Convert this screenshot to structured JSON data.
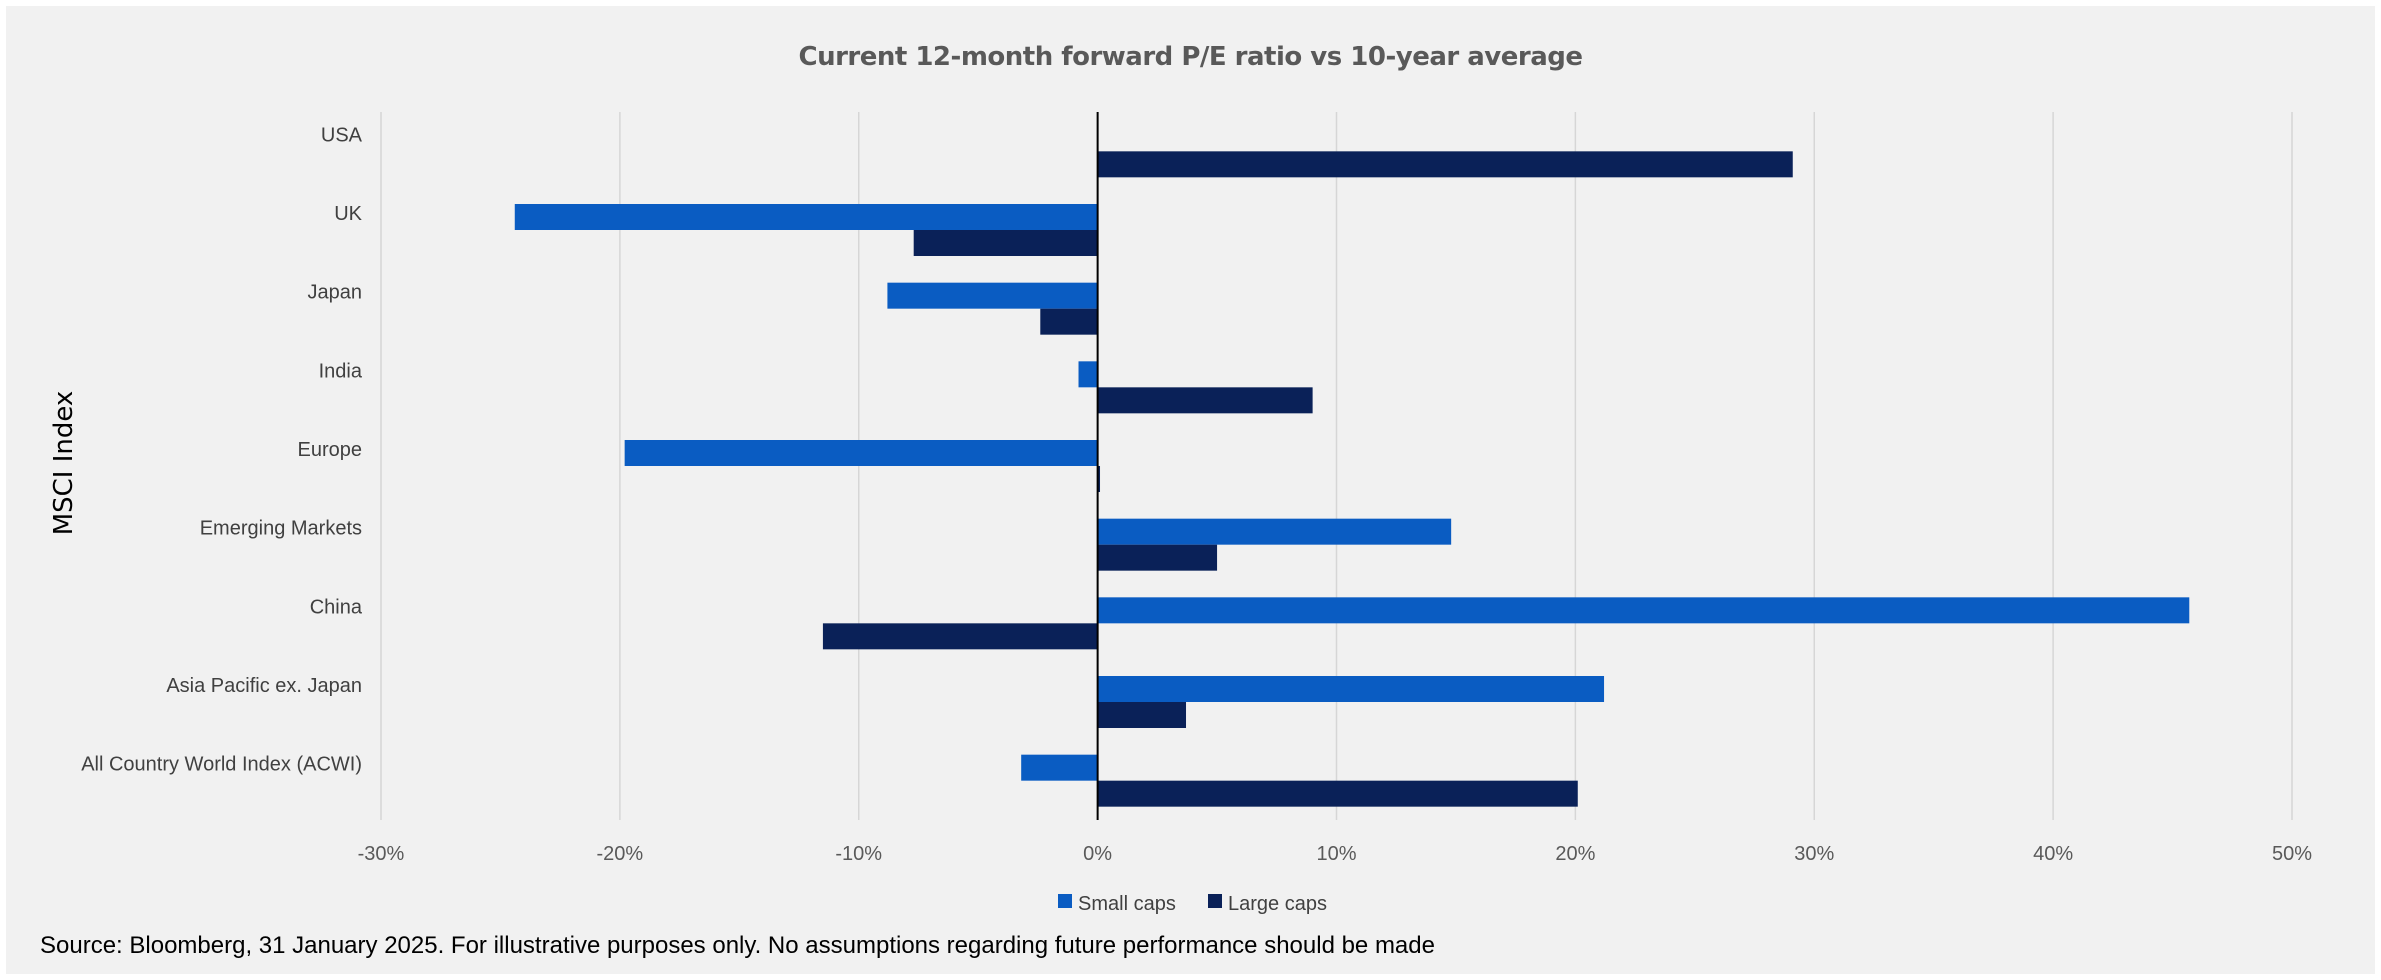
{
  "chart_data": {
    "type": "bar",
    "orientation": "horizontal",
    "title": "Current 12-month forward P/E ratio vs 10-year average",
    "ylabel": "MSCI Index",
    "xlabel": "",
    "categories": [
      "USA",
      "UK",
      "Japan",
      "India",
      "Europe",
      "Emerging Markets",
      "China",
      "Asia Pacific ex. Japan",
      "All Country World Index (ACWI)"
    ],
    "series": [
      {
        "name": "Small caps",
        "color": "#0a5cc2",
        "values": [
          null,
          -24.4,
          -8.8,
          -0.8,
          -19.8,
          14.8,
          45.7,
          21.2,
          -3.2
        ]
      },
      {
        "name": "Large caps",
        "color": "#0a2158",
        "values": [
          29.1,
          -7.7,
          -2.4,
          9.0,
          0.1,
          5.0,
          -11.5,
          3.7,
          20.1
        ]
      }
    ],
    "xlim": [
      -30,
      50
    ],
    "xticks": [
      "-30%",
      "-20%",
      "-10%",
      "0%",
      "10%",
      "20%",
      "30%",
      "40%",
      "50%"
    ],
    "tick_values": [
      -30,
      -20,
      -10,
      0,
      10,
      20,
      30,
      40,
      50
    ],
    "grid": "vertical",
    "legend_position": "bottom"
  },
  "source": "Source: Bloomberg, 31 January 2025. For illustrative purposes only. No assumptions regarding future performance should be made"
}
